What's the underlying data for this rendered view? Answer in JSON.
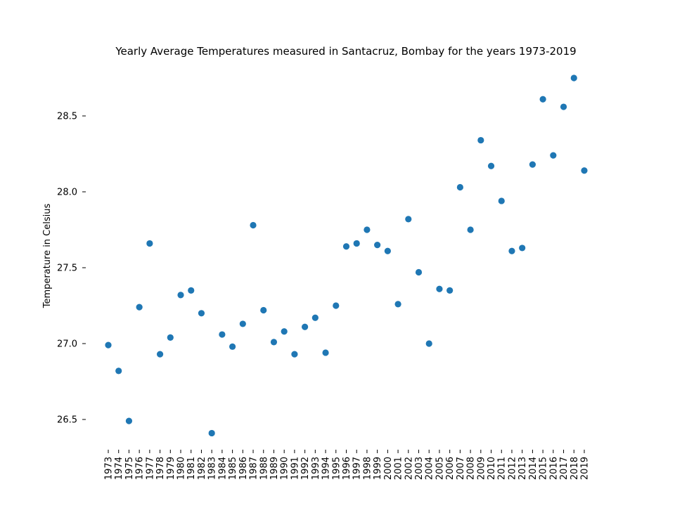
{
  "chart_data": {
    "type": "scatter",
    "title": "Yearly Average Temperatures measured in Santacruz, Bombay for the years 1973-2019",
    "xlabel": "",
    "ylabel": "Temperature in Celsius",
    "ylim": [
      26.3,
      28.8
    ],
    "yticks": [
      "26.5",
      "27.0",
      "27.5",
      "28.0",
      "28.5"
    ],
    "grid": false,
    "point_color": "#1f77b4",
    "x": [
      "1973",
      "1974",
      "1975",
      "1976",
      "1977",
      "1978",
      "1979",
      "1980",
      "1981",
      "1982",
      "1983",
      "1984",
      "1985",
      "1986",
      "1987",
      "1988",
      "1989",
      "1990",
      "1991",
      "1992",
      "1993",
      "1994",
      "1995",
      "1996",
      "1997",
      "1998",
      "1999",
      "2000",
      "2001",
      "2002",
      "2003",
      "2004",
      "2005",
      "2006",
      "2007",
      "2008",
      "2009",
      "2010",
      "2011",
      "2012",
      "2013",
      "2014",
      "2015",
      "2016",
      "2017",
      "2018",
      "2019"
    ],
    "y": [
      26.99,
      26.82,
      26.49,
      27.24,
      27.66,
      26.93,
      27.04,
      27.32,
      27.35,
      27.2,
      26.41,
      27.06,
      26.98,
      27.13,
      27.78,
      27.22,
      27.01,
      27.08,
      26.93,
      27.11,
      27.17,
      26.94,
      27.25,
      27.64,
      27.66,
      27.75,
      27.65,
      27.61,
      27.26,
      27.82,
      27.47,
      27.0,
      27.36,
      27.35,
      28.03,
      27.75,
      28.34,
      28.17,
      27.94,
      27.61,
      27.63,
      28.18,
      28.61,
      28.24,
      28.56,
      28.75,
      28.14
    ]
  }
}
